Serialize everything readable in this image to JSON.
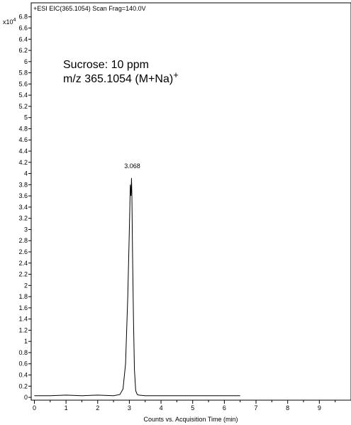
{
  "chart_data": {
    "type": "line",
    "header": "+ESI EIC(365.1054) Scan Frag=140.0V",
    "y_multiplier": "x10",
    "y_multiplier_exp": "4",
    "annotation_line1": "Sucrose: 10 ppm",
    "annotation_line2": "m/z 365.1054 (M+Na)",
    "annotation_sup": "+",
    "peak_label": "3.068",
    "xlabel": "Counts vs. Acquisition Time (min)",
    "xlim": [
      -0.1,
      10.0
    ],
    "ylim": [
      -0.05,
      7.05
    ],
    "x_ticks": [
      0,
      1,
      2,
      3,
      4,
      5,
      6,
      7,
      8,
      9
    ],
    "y_ticks": [
      0,
      0.2,
      0.4,
      0.6,
      0.8,
      1,
      1.2,
      1.4,
      1.6,
      1.8,
      2,
      2.2,
      2.4,
      2.6,
      2.8,
      3,
      3.2,
      3.4,
      3.6,
      3.8,
      4,
      4.2,
      4.4,
      4.6,
      4.8,
      5,
      5.2,
      5.4,
      5.6,
      5.8,
      6,
      6.2,
      6.4,
      6.6,
      6.8
    ],
    "series": [
      {
        "x": [
          0,
          0.5,
          1.0,
          1.5,
          2.0,
          2.5,
          2.7,
          2.8,
          2.88,
          2.95,
          3.0,
          3.03,
          3.05,
          3.068,
          3.08,
          3.1,
          3.13,
          3.16,
          3.2,
          3.25,
          3.3,
          3.5,
          4.0,
          5.0,
          6.0,
          6.5
        ],
        "y": [
          0.03,
          0.03,
          0.04,
          0.03,
          0.04,
          0.03,
          0.05,
          0.15,
          0.6,
          1.8,
          3.0,
          3.8,
          3.6,
          3.92,
          3.6,
          2.6,
          1.4,
          0.5,
          0.12,
          0.05,
          0.04,
          0.03,
          0.03,
          0.03,
          0.03,
          0.03
        ]
      }
    ],
    "line_color": "#000000"
  }
}
